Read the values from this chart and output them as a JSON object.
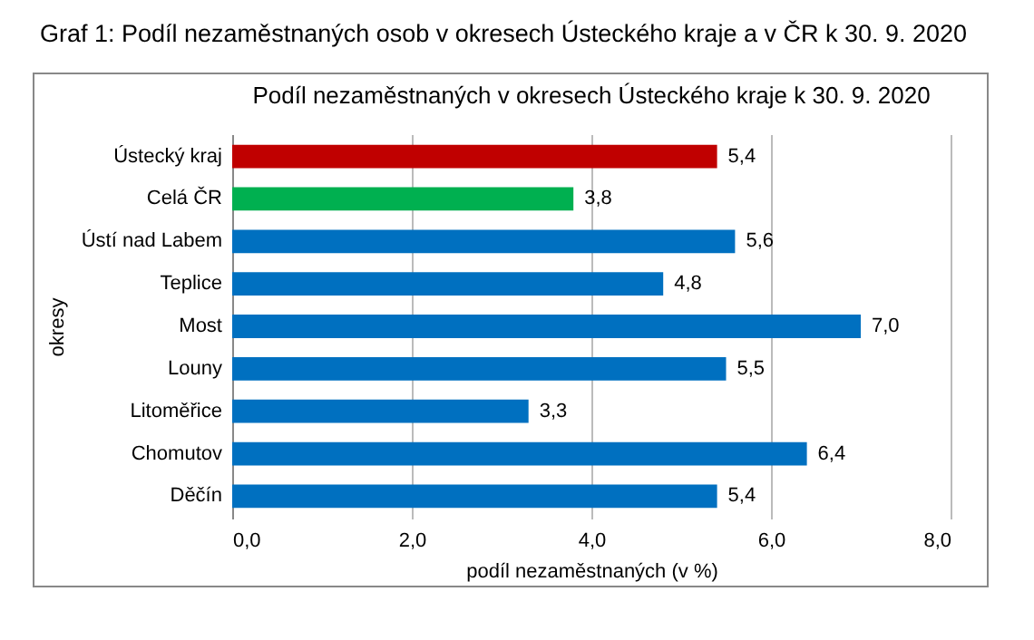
{
  "chart_data": {
    "type": "bar",
    "orientation": "horizontal",
    "title": "Graf 1: Podíl nezaměstnaných osob v okresech Ústeckého kraje a v ČR k 30. 9. 2020",
    "subtitle": "Podíl nezaměstnaných v okresech Ústeckého kraje k 30. 9. 2020",
    "xlabel": "podíl nezaměstnaných (v %)",
    "ylabel": "okresy",
    "categories": [
      "Ústecký kraj",
      "Celá ČR",
      "Ústí nad Labem",
      "Teplice",
      "Most",
      "Louny",
      "Litoměřice",
      "Chomutov",
      "Děčín"
    ],
    "values": [
      5.4,
      3.8,
      5.6,
      4.8,
      7.0,
      5.5,
      3.3,
      6.4,
      5.4
    ],
    "value_labels": [
      "5,4",
      "3,8",
      "5,6",
      "4,8",
      "7,0",
      "5,5",
      "3,3",
      "6,4",
      "5,4"
    ],
    "colors": [
      "#c00000",
      "#00b050",
      "#0070c0",
      "#0070c0",
      "#0070c0",
      "#0070c0",
      "#0070c0",
      "#0070c0",
      "#0070c0"
    ],
    "xlim": [
      0,
      8
    ],
    "xticks": [
      {
        "value": 0,
        "label": "0,0"
      },
      {
        "value": 2,
        "label": "2,0"
      },
      {
        "value": 4,
        "label": "4,0"
      },
      {
        "value": 6,
        "label": "6,0"
      },
      {
        "value": 8,
        "label": "8,0"
      }
    ],
    "grid": "x"
  }
}
